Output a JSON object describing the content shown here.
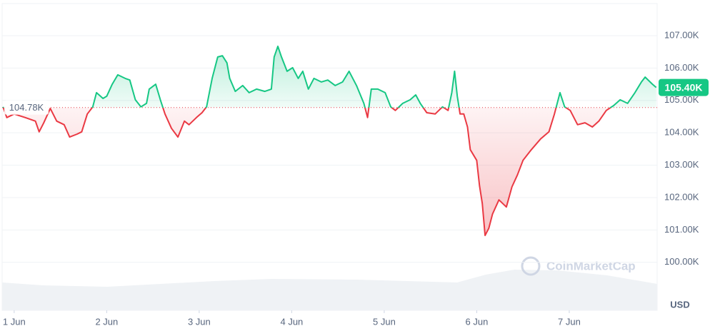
{
  "chart_data": {
    "type": "line",
    "x": [
      0.88,
      0.92,
      1.0,
      1.12,
      1.23,
      1.27,
      1.32,
      1.39,
      1.46,
      1.54,
      1.6,
      1.68,
      1.73,
      1.79,
      1.85,
      1.89,
      1.96,
      2.0,
      2.06,
      2.12,
      2.2,
      2.25,
      2.31,
      2.37,
      2.43,
      2.46,
      2.53,
      2.58,
      2.63,
      2.7,
      2.77,
      2.84,
      2.89,
      2.97,
      3.03,
      3.08,
      3.14,
      3.2,
      3.25,
      3.3,
      3.33,
      3.39,
      3.47,
      3.54,
      3.62,
      3.71,
      3.78,
      3.81,
      3.85,
      3.89,
      3.95,
      4.01,
      4.07,
      4.12,
      4.18,
      4.24,
      4.32,
      4.39,
      4.47,
      4.55,
      4.62,
      4.7,
      4.78,
      4.82,
      4.86,
      4.93,
      5.01,
      5.07,
      5.12,
      5.2,
      5.28,
      5.34,
      5.39,
      5.46,
      5.55,
      5.63,
      5.69,
      5.73,
      5.76,
      5.79,
      5.82,
      5.86,
      5.9,
      5.93,
      6.0,
      6.03,
      6.06,
      6.09,
      6.13,
      6.17,
      6.24,
      6.32,
      6.38,
      6.44,
      6.5,
      6.59,
      6.69,
      6.78,
      6.84,
      6.9,
      6.95,
      7.01,
      7.09,
      7.17,
      7.25,
      7.32,
      7.4,
      7.48,
      7.55,
      7.63,
      7.71,
      7.78,
      7.82,
      7.9,
      7.94
    ],
    "values": [
      104800,
      104470,
      104580,
      104470,
      104360,
      104030,
      104310,
      104750,
      104360,
      104250,
      103870,
      103960,
      104030,
      104580,
      104800,
      105240,
      105060,
      105130,
      105500,
      105790,
      105680,
      105630,
      105020,
      104800,
      104910,
      105350,
      105500,
      105020,
      104580,
      104140,
      103870,
      104360,
      104250,
      104470,
      104620,
      104800,
      105680,
      106340,
      106380,
      106160,
      105680,
      105280,
      105460,
      105240,
      105350,
      105280,
      105350,
      106340,
      106670,
      106340,
      105900,
      106010,
      105680,
      105900,
      105350,
      105680,
      105570,
      105630,
      105460,
      105570,
      105900,
      105460,
      104910,
      104470,
      105350,
      105350,
      105240,
      104800,
      104690,
      104910,
      105020,
      105170,
      104910,
      104620,
      104580,
      104800,
      104690,
      105240,
      105900,
      105130,
      104580,
      104580,
      104180,
      103480,
      103150,
      102370,
      101820,
      100830,
      101050,
      101490,
      101930,
      101710,
      102330,
      102700,
      103150,
      103480,
      103810,
      104030,
      104580,
      105240,
      104800,
      104690,
      104250,
      104310,
      104180,
      104360,
      104690,
      104840,
      105020,
      104910,
      105240,
      105570,
      105720,
      105500,
      105400
    ],
    "color_up": "#16c784",
    "color_down": "#ea3943",
    "baseline": {
      "value": 104780,
      "label": "104.78K"
    },
    "last_price": {
      "value": 105400,
      "label": "105.40K"
    },
    "xlim": [
      0.87,
      7.95
    ],
    "ylim": [
      98520,
      107990
    ],
    "xticks": [
      {
        "value": 1,
        "label": "1 Jun"
      },
      {
        "value": 2,
        "label": "2 Jun"
      },
      {
        "value": 3,
        "label": "3 Jun"
      },
      {
        "value": 4,
        "label": "4 Jun"
      },
      {
        "value": 5,
        "label": "5 Jun"
      },
      {
        "value": 6,
        "label": "6 Jun"
      },
      {
        "value": 7,
        "label": "7 Jun"
      }
    ],
    "yticks": [
      {
        "value": 100000,
        "label": "100.00K"
      },
      {
        "value": 101000,
        "label": "101.00K"
      },
      {
        "value": 102000,
        "label": "102.00K"
      },
      {
        "value": 103000,
        "label": "103.00K"
      },
      {
        "value": 104000,
        "label": "104.00K"
      },
      {
        "value": 105000,
        "label": "105.00K"
      },
      {
        "value": 106000,
        "label": "106.00K"
      },
      {
        "value": 107000,
        "label": "107.00K"
      }
    ],
    "grid": true,
    "y_unit": "USD",
    "watermark": "CoinMarketCap"
  }
}
